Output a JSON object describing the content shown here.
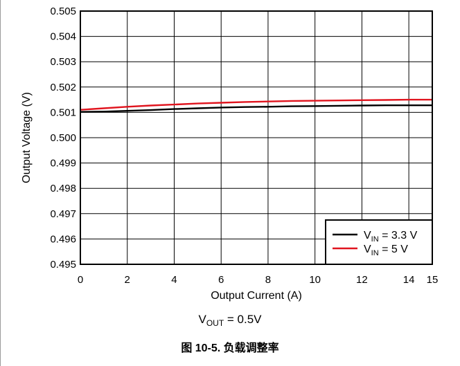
{
  "chart_data": {
    "type": "line",
    "xlabel": "Output Current (A)",
    "ylabel": "Output Voltage (V)",
    "xlim": [
      0,
      15
    ],
    "ylim": [
      0.495,
      0.505
    ],
    "x_ticks": [
      "0",
      "2",
      "4",
      "6",
      "8",
      "10",
      "12",
      "14",
      "15"
    ],
    "x_tick_values": [
      0,
      2,
      4,
      6,
      8,
      10,
      12,
      14,
      15
    ],
    "y_ticks": [
      "0.495",
      "0.496",
      "0.497",
      "0.498",
      "0.499",
      "0.500",
      "0.501",
      "0.502",
      "0.503",
      "0.504",
      "0.505"
    ],
    "grid": true,
    "legend_position": "bottom-right",
    "series": [
      {
        "legend_main": "V",
        "legend_sub": "IN",
        "legend_rest": " = 3.3 V",
        "color": "#000000",
        "x": [
          0,
          1,
          2,
          3,
          4,
          5,
          6,
          7,
          8,
          9,
          10,
          11,
          12,
          13,
          14,
          15
        ],
        "y": [
          0.50102,
          0.50103,
          0.50106,
          0.50109,
          0.50113,
          0.50116,
          0.50119,
          0.50121,
          0.50122,
          0.50124,
          0.50125,
          0.50126,
          0.50127,
          0.50128,
          0.50128,
          0.50128
        ]
      },
      {
        "legend_main": "V",
        "legend_sub": "IN",
        "legend_rest": " = 5 V",
        "color": "#e0141e",
        "x": [
          0,
          1,
          2,
          3,
          4,
          5,
          6,
          7,
          8,
          9,
          10,
          11,
          12,
          13,
          14,
          15
        ],
        "y": [
          0.5011,
          0.50116,
          0.50122,
          0.50127,
          0.50131,
          0.50135,
          0.50138,
          0.50141,
          0.50143,
          0.50145,
          0.50146,
          0.50147,
          0.50148,
          0.50149,
          0.5015,
          0.5015
        ]
      }
    ]
  },
  "condition": {
    "main": "V",
    "sub": "OUT",
    "rest": " = 0.5V"
  },
  "caption": "图 10-5. 负载调整率"
}
